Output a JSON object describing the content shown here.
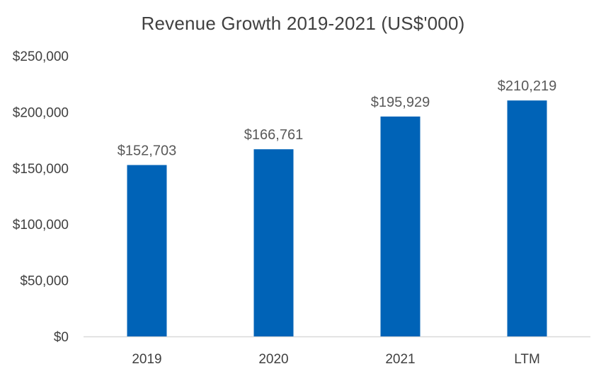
{
  "chart_data": {
    "type": "bar",
    "title": "Revenue Growth 2019-2021 (US$'000)",
    "categories": [
      "2019",
      "2020",
      "2021",
      "LTM"
    ],
    "values": [
      152703,
      166761,
      195929,
      210219
    ],
    "data_labels": [
      "$152,703",
      "$166,761",
      "$195,929",
      "$210,219"
    ],
    "ylim": [
      0,
      250000
    ],
    "y_ticks": [
      0,
      50000,
      100000,
      150000,
      200000,
      250000
    ],
    "y_tick_labels": [
      "$0",
      "$50,000",
      "$100,000",
      "$150,000",
      "$200,000",
      "$250,000"
    ],
    "xlabel": "",
    "ylabel": "",
    "grid": false,
    "bar_color": "#0063B7"
  }
}
